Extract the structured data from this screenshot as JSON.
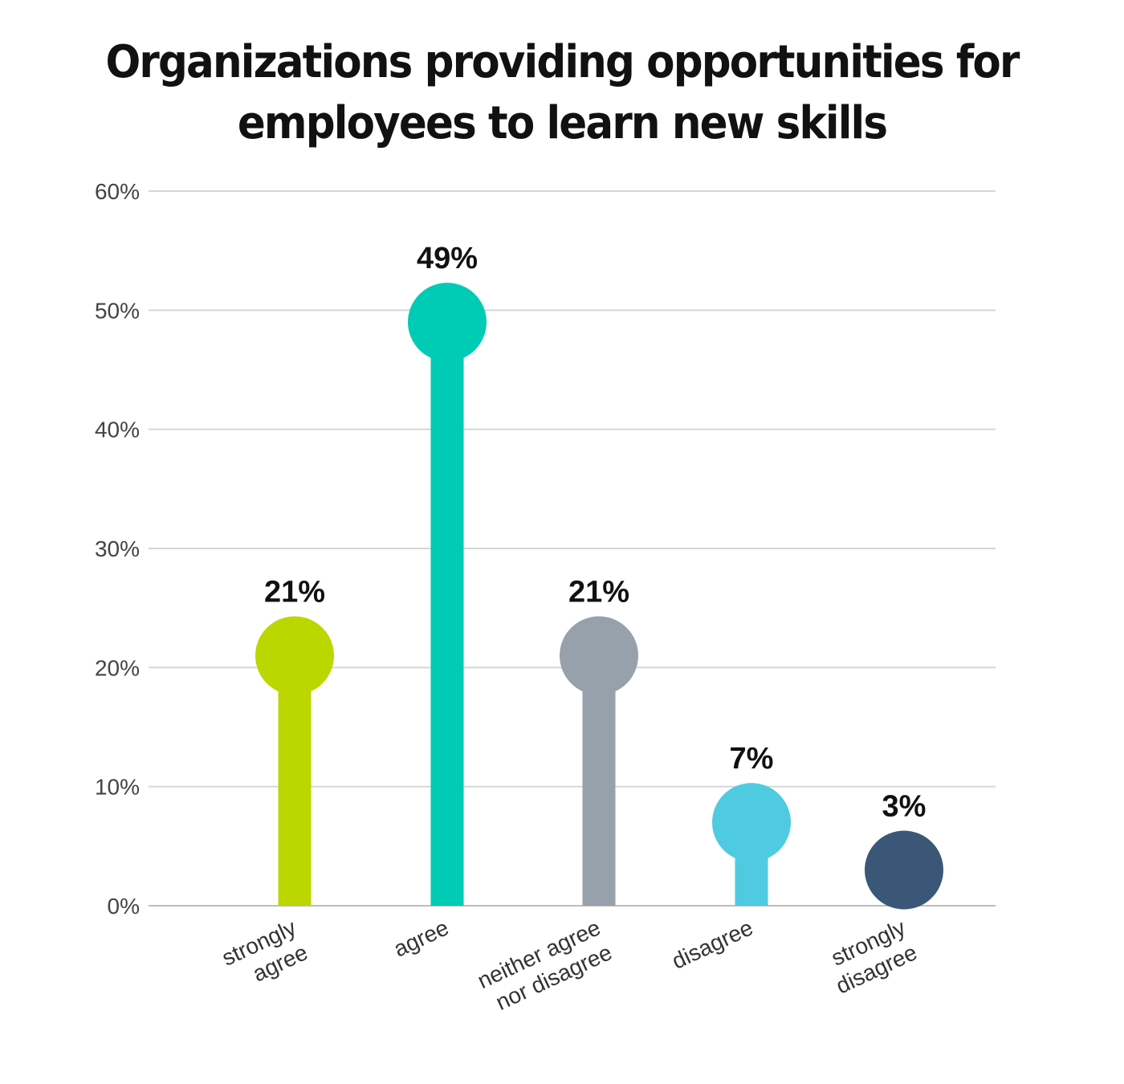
{
  "chart_data": {
    "type": "bar",
    "title_lines": [
      "Organizations providing opportunities for",
      "employees to learn new skills"
    ],
    "categories": [
      [
        "strongly",
        "agree"
      ],
      [
        "agree"
      ],
      [
        "neither agree",
        "nor disagree"
      ],
      [
        "disagree"
      ],
      [
        "strongly",
        "disagree"
      ]
    ],
    "values": [
      21,
      49,
      21,
      7,
      3
    ],
    "value_labels": [
      "21%",
      "49%",
      "21%",
      "7%",
      "3%"
    ],
    "colors": [
      "#bcd600",
      "#00cbb4",
      "#97a1ac",
      "#4ecbe1",
      "#3b5778"
    ],
    "yticks": [
      0,
      10,
      20,
      30,
      40,
      50,
      60
    ],
    "ytick_labels": [
      "0%",
      "10%",
      "20%",
      "30%",
      "40%",
      "50%",
      "60%"
    ],
    "ylim": [
      0,
      60
    ],
    "xlabel": "",
    "ylabel": "",
    "grid": true,
    "style": "lollipop"
  }
}
